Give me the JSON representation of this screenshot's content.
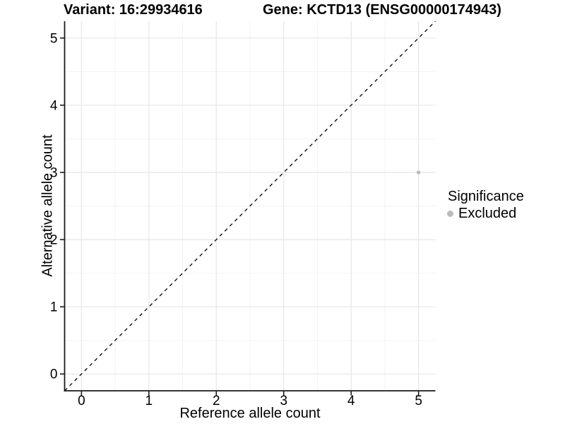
{
  "chart_data": {
    "type": "scatter",
    "title_left": "Variant: 16:29934616",
    "title_right": "Gene: KCTD13 (ENSG00000174943)",
    "xlabel": "Reference allele count",
    "ylabel": "Alternative allele count",
    "xlim": [
      -0.25,
      5.25
    ],
    "ylim": [
      -0.25,
      5.25
    ],
    "xticks": [
      0,
      1,
      2,
      3,
      4,
      5
    ],
    "yticks": [
      0,
      1,
      2,
      3,
      4,
      5
    ],
    "minor_grid_positions": [
      0.5,
      1.5,
      2.5,
      3.5,
      4.5
    ],
    "grid": true,
    "legend_position": "right",
    "series": [
      {
        "name": "Excluded",
        "color": "#bcbcbc",
        "points": [
          {
            "x": 5,
            "y": 3
          }
        ]
      }
    ],
    "reference_line": {
      "slope": 1,
      "intercept": 0,
      "style": "dashed",
      "color": "#000000"
    },
    "legend": {
      "title": "Significance",
      "entries": [
        {
          "label": "Excluded",
          "color": "#bcbcbc"
        }
      ]
    }
  },
  "colors": {
    "background": "#ffffff",
    "grid_major": "#e8e8e8",
    "grid_minor": "#f2f2f2",
    "axis": "#1a1a1a",
    "tick_label": "#000000",
    "point": "#bcbcbc",
    "reference_line": "#000000"
  }
}
